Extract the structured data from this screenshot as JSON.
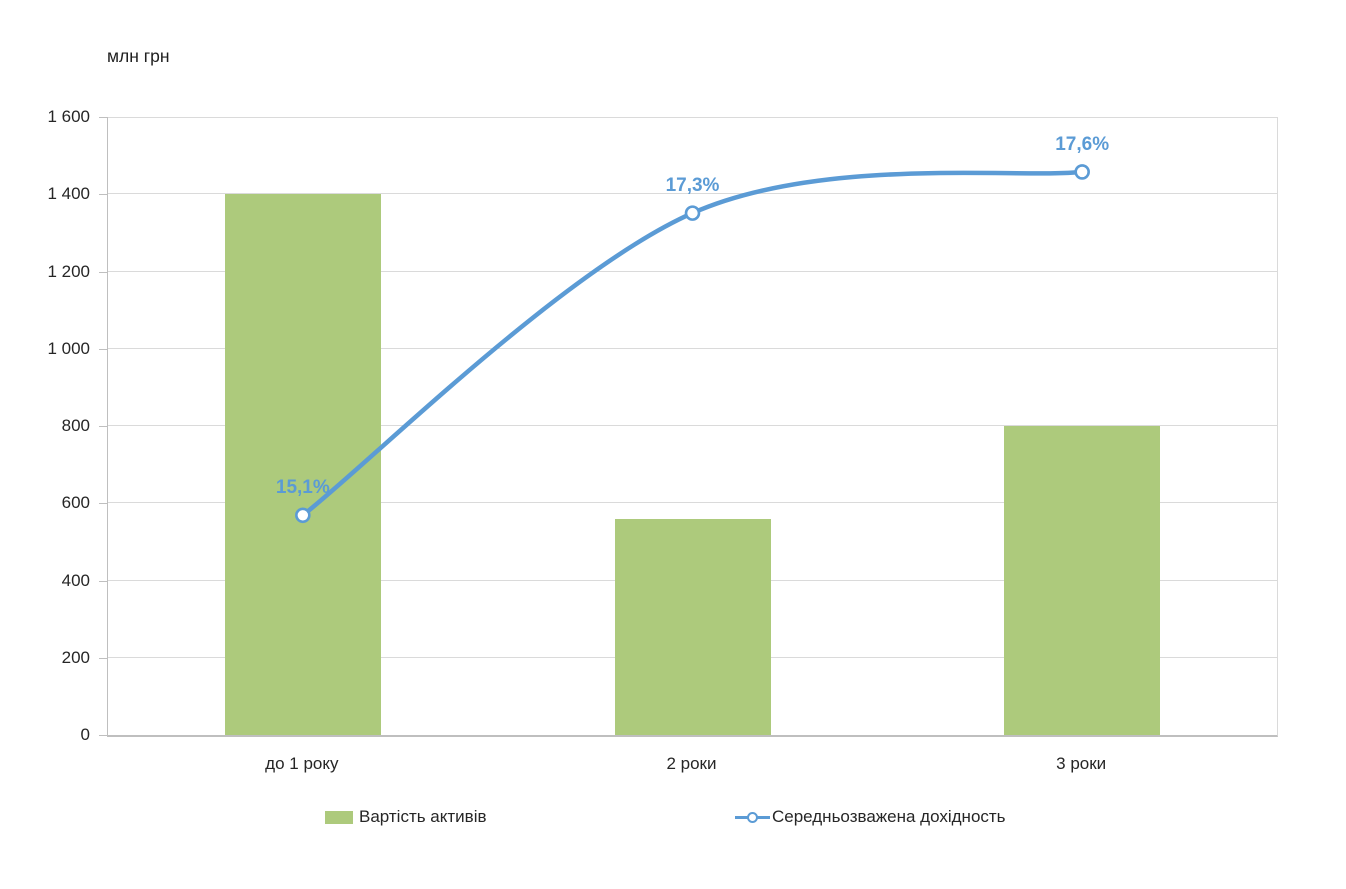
{
  "chart_data": {
    "type": "bar",
    "subtype": "combo-bar-line",
    "title": "млн грн",
    "categories": [
      "до 1 року",
      "2 роки",
      "3 роки"
    ],
    "series": [
      {
        "name": "Вартість активів",
        "type": "bar",
        "unit": "млн грн",
        "values": [
          1400,
          560,
          800
        ]
      },
      {
        "name": "Середньозважена дохідность",
        "type": "line",
        "smooth": true,
        "unit": "%",
        "values": [
          15.1,
          17.3,
          17.6
        ],
        "labels": [
          "15,1%",
          "17,3%",
          "17,6%"
        ]
      }
    ],
    "xlabel": "",
    "ylabel": "млн грн",
    "ylim": [
      0,
      1600
    ],
    "y_axis": {
      "max": 1600,
      "ticks": [
        {
          "label": "0",
          "value": 0
        },
        {
          "label": "200",
          "value": 200
        },
        {
          "label": "400",
          "value": 400
        },
        {
          "label": "600",
          "value": 600
        },
        {
          "label": "800",
          "value": 800
        },
        {
          "label": "1 000",
          "value": 1000
        },
        {
          "label": "1 200",
          "value": 1200
        },
        {
          "label": "1 400",
          "value": 1400
        },
        {
          "label": "1 600",
          "value": 1600
        }
      ]
    },
    "grid": true,
    "legend_position": "bottom"
  },
  "colors": {
    "bar": "#adca7c",
    "line": "#5b9bd5",
    "grid": "#dadada",
    "axis": "#bfbfbf",
    "text": "#262626"
  }
}
